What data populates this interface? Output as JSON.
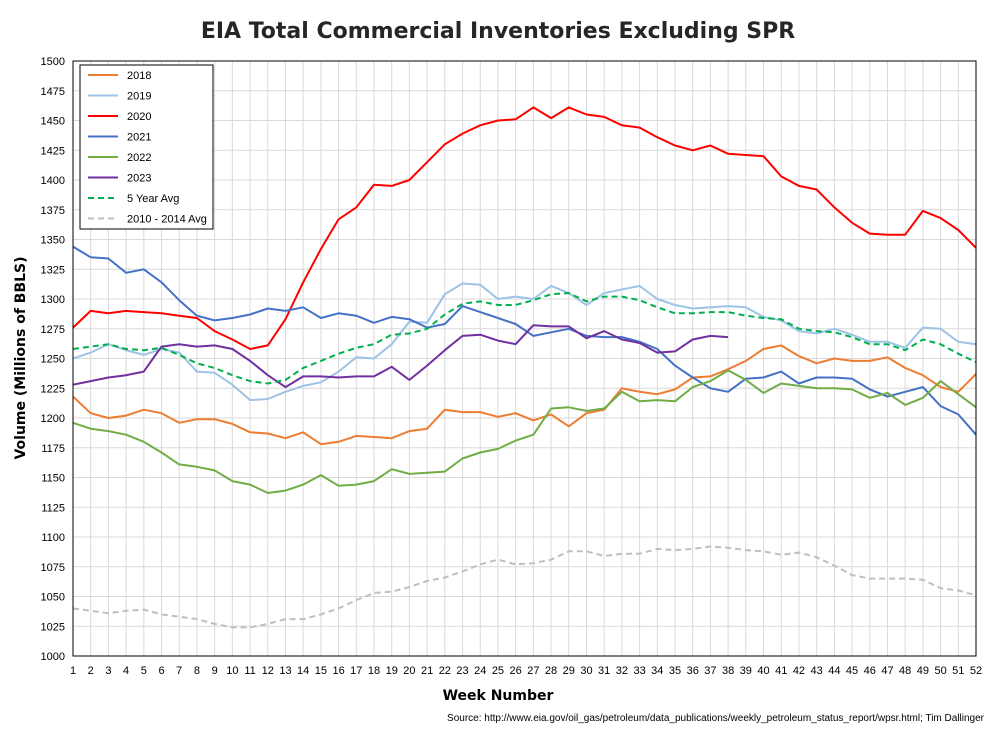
{
  "chart_data": {
    "type": "line",
    "title": "EIA Total Commercial Inventories Excluding SPR",
    "xlabel": "Week Number",
    "ylabel": "Volume (Millions of BBLS)",
    "source": "Source: http://www.eia.gov/oil_gas/petroleum/data_publications/weekly_petroleum_status_report/wpsr.html; Tim Dallinger",
    "xlim": [
      1,
      52
    ],
    "ylim": [
      1000,
      1500
    ],
    "ytick_step": 25,
    "grid": true,
    "legend_position": "top-left",
    "x": [
      1,
      2,
      3,
      4,
      5,
      6,
      7,
      8,
      9,
      10,
      11,
      12,
      13,
      14,
      15,
      16,
      17,
      18,
      19,
      20,
      21,
      22,
      23,
      24,
      25,
      26,
      27,
      28,
      29,
      30,
      31,
      32,
      33,
      34,
      35,
      36,
      37,
      38,
      39,
      40,
      41,
      42,
      43,
      44,
      45,
      46,
      47,
      48,
      49,
      50,
      51,
      52
    ],
    "series": [
      {
        "name": "2018",
        "color": "#ed7d31",
        "dash": "",
        "values": [
          1218,
          1204,
          1200,
          1202,
          1207,
          1204,
          1196,
          1199,
          1199,
          1195,
          1188,
          1187,
          1183,
          1188,
          1178,
          1180,
          1185,
          1184,
          1183,
          1189,
          1191,
          1207,
          1205,
          1205,
          1201,
          1204,
          1198,
          1203,
          1193,
          1204,
          1207,
          1225,
          1222,
          1220,
          1224,
          1234,
          1235,
          1241,
          1248,
          1258,
          1261,
          1252,
          1246,
          1250,
          1248,
          1248,
          1251,
          1242,
          1236,
          1226,
          1222,
          1237
        ]
      },
      {
        "name": "2019",
        "color": "#9dc3e6",
        "dash": "",
        "values": [
          1250,
          1255,
          1262,
          1257,
          1253,
          1258,
          1255,
          1239,
          1238,
          1228,
          1215,
          1216,
          1222,
          1227,
          1230,
          1239,
          1251,
          1250,
          1262,
          1281,
          1280,
          1304,
          1313,
          1312,
          1300,
          1302,
          1300,
          1311,
          1305,
          1295,
          1305,
          1308,
          1311,
          1300,
          1295,
          1292,
          1293,
          1294,
          1293,
          1285,
          1282,
          1273,
          1271,
          1275,
          1270,
          1264,
          1264,
          1259,
          1276,
          1275,
          1264,
          1262
        ]
      },
      {
        "name": "2020",
        "color": "#ff0000",
        "dash": "",
        "values": [
          1276,
          1290,
          1288,
          1290,
          1289,
          1288,
          1286,
          1284,
          1273,
          1266,
          1258,
          1261,
          1283,
          1314,
          1342,
          1367,
          1377,
          1396,
          1395,
          1400,
          1415,
          1430,
          1439,
          1446,
          1450,
          1451,
          1461,
          1452,
          1461,
          1455,
          1453,
          1446,
          1444,
          1436,
          1429,
          1425,
          1429,
          1422,
          1421,
          1420,
          1403,
          1395,
          1392,
          1377,
          1364,
          1355,
          1354,
          1354,
          1374,
          1368,
          1358,
          1343
        ]
      },
      {
        "name": "2021",
        "color": "#4472c4",
        "dash": "",
        "values": [
          1344,
          1335,
          1334,
          1322,
          1325,
          1314,
          1299,
          1286,
          1282,
          1284,
          1287,
          1292,
          1290,
          1293,
          1284,
          1288,
          1286,
          1280,
          1285,
          1283,
          1276,
          1279,
          1294,
          1289,
          1284,
          1279,
          1269,
          1272,
          1275,
          1269,
          1268,
          1268,
          1264,
          1258,
          1244,
          1234,
          1225,
          1222,
          1233,
          1234,
          1239,
          1229,
          1234,
          1234,
          1233,
          1224,
          1218,
          1222,
          1226,
          1210,
          1203,
          1186
        ]
      },
      {
        "name": "2022",
        "color": "#70ad47",
        "dash": "",
        "values": [
          1196,
          1191,
          1189,
          1186,
          1180,
          1171,
          1161,
          1159,
          1156,
          1147,
          1144,
          1137,
          1139,
          1144,
          1152,
          1143,
          1144,
          1147,
          1157,
          1153,
          1154,
          1155,
          1166,
          1171,
          1174,
          1181,
          1186,
          1208,
          1209,
          1206,
          1208,
          1222,
          1214,
          1215,
          1214,
          1226,
          1231,
          1240,
          1232,
          1221,
          1229,
          1227,
          1225,
          1225,
          1224,
          1217,
          1221,
          1211,
          1217,
          1231,
          1220,
          1209
        ]
      },
      {
        "name": "2023",
        "color": "#7030a0",
        "dash": "",
        "values": [
          1228,
          1231,
          1234,
          1236,
          1239,
          1260,
          1262,
          1260,
          1261,
          1258,
          1248,
          1236,
          1226,
          1235,
          1235,
          1234,
          1235,
          1235,
          1243,
          1232,
          1244,
          1257,
          1269,
          1270,
          1265,
          1262,
          1278,
          1277,
          1277,
          1267,
          1273,
          1266,
          1263,
          1255,
          1256,
          1266,
          1269,
          1268,
          null,
          null,
          null,
          null,
          null,
          null,
          null,
          null,
          null,
          null,
          null,
          null,
          null,
          null
        ]
      },
      {
        "name": "5 Year Avg",
        "color": "#00b050",
        "dash": "6,4",
        "values": [
          1258,
          1260,
          1262,
          1258,
          1257,
          1259,
          1253,
          1246,
          1242,
          1236,
          1231,
          1229,
          1232,
          1242,
          1248,
          1254,
          1259,
          1262,
          1270,
          1271,
          1275,
          1287,
          1296,
          1298,
          1295,
          1295,
          1299,
          1304,
          1305,
          1298,
          1302,
          1302,
          1299,
          1293,
          1288,
          1288,
          1289,
          1289,
          1286,
          1284,
          1283,
          1275,
          1273,
          1272,
          1268,
          1262,
          1262,
          1257,
          1266,
          1262,
          1254,
          1247
        ]
      },
      {
        "name": "2010 - 2014 Avg",
        "color": "#bfbfbf",
        "dash": "6,4",
        "values": [
          1040,
          1038,
          1036,
          1038,
          1039,
          1035,
          1033,
          1031,
          1027,
          1024,
          1024,
          1027,
          1031,
          1031,
          1035,
          1040,
          1047,
          1053,
          1054,
          1058,
          1063,
          1066,
          1071,
          1077,
          1081,
          1077,
          1078,
          1081,
          1088,
          1088,
          1084,
          1086,
          1086,
          1090,
          1089,
          1090,
          1092,
          1091,
          1089,
          1088,
          1085,
          1087,
          1083,
          1076,
          1068,
          1065,
          1065,
          1065,
          1064,
          1057,
          1055,
          1051
        ]
      }
    ]
  }
}
